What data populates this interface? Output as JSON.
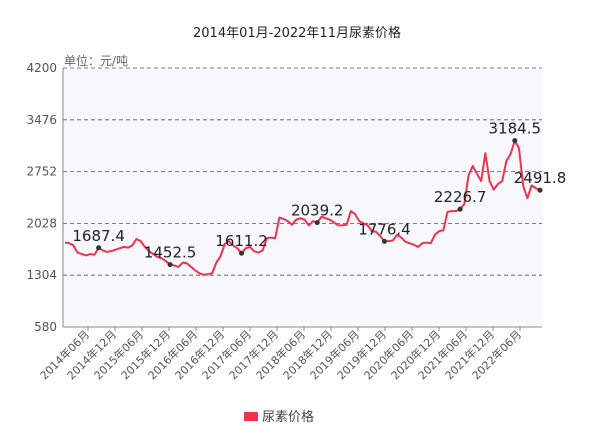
{
  "chart_data": {
    "type": "line",
    "title": "2014年01月-2022年11月尿素价格",
    "unit_label": "单位：元/吨",
    "y_ticks": [
      580,
      1304,
      2028,
      2752,
      3476,
      4200
    ],
    "ylim": [
      580,
      4200
    ],
    "grid": "horizontal-dashed",
    "x_tick_labels": [
      "2014年06月",
      "2014年12月",
      "2015年06月",
      "2015年12月",
      "2016年06月",
      "2016年12月",
      "2017年06月",
      "2017年12月",
      "2018年06月",
      "2018年12月",
      "2019年06月",
      "2019年12月",
      "2020年06月",
      "2020年12月",
      "2021年06月",
      "2021年12月",
      "2022年06月"
    ],
    "legend_position": "bottom",
    "accent_color": "#f0334d",
    "plot_background": "#f7f7fc",
    "series": [
      {
        "name": "尿素价格",
        "color": "#f0334d",
        "values": [
          1760,
          1750,
          1720,
          1620,
          1600,
          1580,
          1600,
          1590,
          1687.4,
          1650,
          1630,
          1640,
          1660,
          1680,
          1700,
          1690,
          1720,
          1810,
          1780,
          1700,
          1640,
          1600,
          1560,
          1540,
          1500,
          1452.5,
          1440,
          1420,
          1480,
          1470,
          1420,
          1370,
          1330,
          1310,
          1320,
          1330,
          1480,
          1570,
          1740,
          1780,
          1720,
          1680,
          1611.2,
          1680,
          1700,
          1640,
          1620,
          1650,
          1820,
          1830,
          1820,
          2110,
          2090,
          2060,
          2010,
          2080,
          2100,
          2080,
          2000,
          2060,
          2039.2,
          2120,
          2100,
          2080,
          2040,
          2000,
          2000,
          2010,
          2200,
          2160,
          2060,
          2030,
          2000,
          1920,
          1910,
          1850,
          1776.4,
          1780,
          1790,
          1870,
          1830,
          1770,
          1750,
          1730,
          1700,
          1750,
          1760,
          1750,
          1870,
          1920,
          1930,
          2190,
          2200,
          2200,
          2226.7,
          2300,
          2700,
          2830,
          2720,
          2620,
          3010,
          2620,
          2500,
          2580,
          2620,
          2900,
          3000,
          3184.5,
          3080,
          2550,
          2380,
          2560,
          2520,
          2491.8
        ]
      }
    ],
    "data_labels": [
      {
        "index": 8,
        "text": "1687.4"
      },
      {
        "index": 25,
        "text": "1452.5"
      },
      {
        "index": 42,
        "text": "1611.2"
      },
      {
        "index": 60,
        "text": "2039.2"
      },
      {
        "index": 76,
        "text": "1776.4"
      },
      {
        "index": 94,
        "text": "2226.7"
      },
      {
        "index": 107,
        "text": "3184.5"
      },
      {
        "index": 113,
        "text": "2491.8"
      }
    ]
  }
}
